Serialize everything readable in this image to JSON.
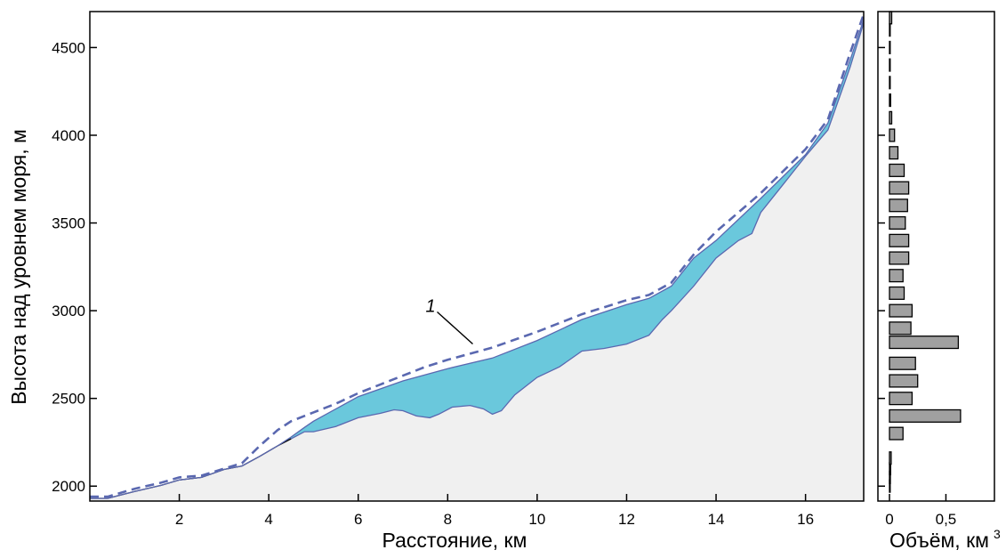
{
  "chart_data": [
    {
      "type": "area",
      "xlabel": "Расстояние, км",
      "ylabel": "Высота над уровнем моря, м",
      "xlim": [
        0,
        17.3
      ],
      "ylim": [
        1915,
        4705
      ],
      "xticks": [
        2,
        4,
        6,
        8,
        10,
        12,
        14,
        16
      ],
      "yticks": [
        2000,
        2500,
        3000,
        3500,
        4000,
        4500
      ],
      "grid": false,
      "colors": {
        "bed": "#f0f0f0",
        "ice": "#6ac8dc",
        "surface_line": "#5a68b0",
        "outline": "#000000"
      },
      "series": [
        {
          "role": "bed",
          "x": [
            0,
            0.4,
            1,
            1.6,
            2,
            2.5,
            3,
            3.4,
            3.8,
            4.2,
            4.5,
            4.8,
            5,
            5.5,
            6,
            6.5,
            6.8,
            7,
            7.3,
            7.6,
            7.8,
            8.1,
            8.5,
            8.8,
            9,
            9.2,
            9.5,
            10,
            10.5,
            11,
            11.5,
            12,
            12.5,
            12.8,
            13,
            13.5,
            14,
            14.5,
            14.8,
            15,
            15.5,
            16,
            16.5,
            17,
            17.3
          ],
          "y": [
            1930,
            1930,
            1970,
            2005,
            2035,
            2050,
            2095,
            2115,
            2170,
            2230,
            2270,
            2310,
            2310,
            2340,
            2390,
            2415,
            2435,
            2430,
            2400,
            2390,
            2410,
            2450,
            2460,
            2440,
            2410,
            2430,
            2520,
            2620,
            2680,
            2770,
            2785,
            2810,
            2860,
            2950,
            3000,
            3140,
            3300,
            3400,
            3440,
            3560,
            3720,
            3880,
            4030,
            4390,
            4640
          ]
        },
        {
          "role": "ice-surface",
          "x": [
            0,
            0.4,
            1,
            1.6,
            2,
            2.5,
            3,
            3.4,
            3.8,
            4.2,
            4.5,
            4.8,
            5,
            6,
            7,
            8,
            9,
            10,
            11,
            12,
            12.5,
            13,
            13.5,
            14,
            15,
            16,
            16.5,
            17,
            17.3
          ],
          "y": [
            1930,
            1930,
            1970,
            2005,
            2035,
            2050,
            2095,
            2115,
            2170,
            2230,
            2280,
            2335,
            2370,
            2510,
            2600,
            2670,
            2730,
            2830,
            2950,
            3035,
            3070,
            3140,
            3300,
            3400,
            3640,
            3890,
            4070,
            4430,
            4660
          ]
        },
        {
          "name": "1",
          "role": "former-surface",
          "x": [
            0,
            0.4,
            1,
            1.6,
            2,
            2.5,
            3,
            3.4,
            3.8,
            4.2,
            4.5,
            5,
            5.5,
            6,
            6.5,
            7,
            7.5,
            8,
            9,
            10,
            11,
            12,
            12.5,
            13,
            13.5,
            14,
            15,
            16,
            16.5,
            17,
            17.3
          ],
          "y": [
            1940,
            1940,
            1985,
            2020,
            2050,
            2060,
            2100,
            2130,
            2230,
            2320,
            2370,
            2420,
            2470,
            2530,
            2580,
            2630,
            2680,
            2720,
            2790,
            2880,
            2980,
            3060,
            3090,
            3160,
            3320,
            3450,
            3670,
            3920,
            4090,
            4470,
            4690
          ]
        }
      ],
      "annotations": [
        {
          "text": "1",
          "x": 8.6,
          "y": 2790
        }
      ]
    },
    {
      "type": "bar",
      "orientation": "horizontal",
      "xlabel": "Объём, км",
      "xlabel_superscript": "3",
      "xlim": [
        0,
        0.93
      ],
      "ylim": [
        1915,
        4705
      ],
      "xticks": [
        "0",
        "0,5"
      ],
      "xtick_values": [
        0,
        0.5
      ],
      "yticks": [
        2000,
        2500,
        3000,
        3500,
        4000,
        4500
      ],
      "bar_height": 70,
      "grid": false,
      "colors": {
        "bar": "#a0a0a0",
        "edge": "#000000"
      },
      "categories": [
        2000,
        2050,
        2100,
        2160,
        2300,
        2400,
        2500,
        2600,
        2700,
        2820,
        2900,
        3000,
        3100,
        3200,
        3300,
        3400,
        3500,
        3600,
        3700,
        3800,
        3900,
        4000,
        4100,
        4200,
        4300,
        4400,
        4500,
        4600,
        4670
      ],
      "values": [
        0.005,
        0.008,
        0.01,
        0.015,
        0.12,
        0.63,
        0.2,
        0.25,
        0.23,
        0.61,
        0.19,
        0.2,
        0.13,
        0.12,
        0.17,
        0.17,
        0.14,
        0.16,
        0.17,
        0.13,
        0.075,
        0.045,
        0.02,
        0.01,
        0.006,
        0.006,
        0.006,
        0.005,
        0.02
      ]
    }
  ]
}
